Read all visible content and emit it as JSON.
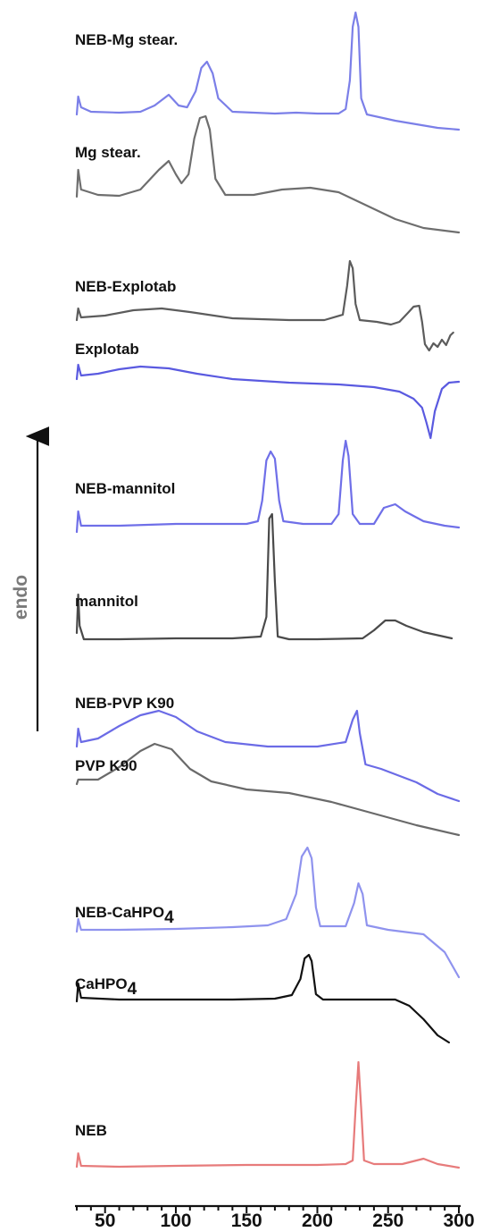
{
  "chart_data": {
    "type": "line",
    "title": "",
    "xlabel": "",
    "ylabel": "endo",
    "xlim": [
      30,
      300
    ],
    "x_ticks": [
      50,
      100,
      150,
      200,
      250,
      300
    ],
    "x_tick_labels": [
      "50",
      "100",
      "150",
      "200",
      "250",
      "300"
    ],
    "grid": false,
    "legend": "none",
    "series": [
      {
        "name": "NEB-Mg stear.",
        "color": "#7b7fe8",
        "points": [
          [
            30,
            128
          ],
          [
            31,
            108
          ],
          [
            33,
            120
          ],
          [
            40,
            125
          ],
          [
            60,
            126
          ],
          [
            75,
            125
          ],
          [
            85,
            118
          ],
          [
            95,
            106
          ],
          [
            102,
            118
          ],
          [
            108,
            120
          ],
          [
            114,
            102
          ],
          [
            118,
            76
          ],
          [
            122,
            69
          ],
          [
            126,
            82
          ],
          [
            130,
            110
          ],
          [
            140,
            125
          ],
          [
            170,
            127
          ],
          [
            185,
            126
          ],
          [
            200,
            127
          ],
          [
            215,
            127
          ],
          [
            220,
            122
          ],
          [
            223,
            90
          ],
          [
            225,
            30
          ],
          [
            227,
            14
          ],
          [
            229,
            30
          ],
          [
            231,
            110
          ],
          [
            235,
            128
          ],
          [
            255,
            135
          ],
          [
            285,
            143
          ],
          [
            300,
            145
          ]
        ]
      },
      {
        "name": "Mg stear.",
        "color": "#6e6e6e",
        "points": [
          [
            30,
            220
          ],
          [
            31,
            190
          ],
          [
            33,
            212
          ],
          [
            45,
            218
          ],
          [
            60,
            219
          ],
          [
            75,
            212
          ],
          [
            88,
            190
          ],
          [
            95,
            180
          ],
          [
            100,
            195
          ],
          [
            104,
            205
          ],
          [
            109,
            195
          ],
          [
            113,
            155
          ],
          [
            117,
            132
          ],
          [
            121,
            130
          ],
          [
            124,
            145
          ],
          [
            128,
            200
          ],
          [
            135,
            218
          ],
          [
            155,
            218
          ],
          [
            175,
            212
          ],
          [
            195,
            210
          ],
          [
            215,
            215
          ],
          [
            235,
            230
          ],
          [
            255,
            245
          ],
          [
            275,
            255
          ],
          [
            300,
            260
          ]
        ]
      },
      {
        "name": "NEB-Explotab",
        "color": "#5c5c5c",
        "points": [
          [
            30,
            358
          ],
          [
            31,
            345
          ],
          [
            33,
            355
          ],
          [
            50,
            353
          ],
          [
            70,
            347
          ],
          [
            90,
            345
          ],
          [
            110,
            349
          ],
          [
            140,
            356
          ],
          [
            180,
            358
          ],
          [
            205,
            358
          ],
          [
            218,
            352
          ],
          [
            221,
            320
          ],
          [
            223,
            292
          ],
          [
            225,
            300
          ],
          [
            227,
            340
          ],
          [
            230,
            358
          ],
          [
            242,
            360
          ],
          [
            252,
            363
          ],
          [
            258,
            360
          ],
          [
            264,
            350
          ],
          [
            268,
            343
          ],
          [
            272,
            342
          ],
          [
            274,
            360
          ],
          [
            276,
            385
          ],
          [
            279,
            392
          ],
          [
            282,
            384
          ],
          [
            285,
            388
          ],
          [
            288,
            380
          ],
          [
            291,
            386
          ],
          [
            294,
            375
          ],
          [
            296,
            372
          ]
        ]
      },
      {
        "name": "Explotab",
        "color": "#5a5ae0",
        "points": [
          [
            30,
            424
          ],
          [
            31,
            408
          ],
          [
            33,
            420
          ],
          [
            45,
            418
          ],
          [
            60,
            413
          ],
          [
            75,
            410
          ],
          [
            95,
            412
          ],
          [
            115,
            418
          ],
          [
            140,
            424
          ],
          [
            180,
            428
          ],
          [
            215,
            430
          ],
          [
            240,
            433
          ],
          [
            258,
            438
          ],
          [
            268,
            446
          ],
          [
            274,
            456
          ],
          [
            277,
            472
          ],
          [
            280,
            490
          ],
          [
            283,
            460
          ],
          [
            288,
            435
          ],
          [
            293,
            428
          ],
          [
            300,
            427
          ]
        ]
      },
      {
        "name": "NEB-mannitol",
        "color": "#6f6fe8",
        "points": [
          [
            30,
            595
          ],
          [
            31,
            572
          ],
          [
            33,
            588
          ],
          [
            60,
            588
          ],
          [
            100,
            586
          ],
          [
            150,
            586
          ],
          [
            158,
            583
          ],
          [
            161,
            560
          ],
          [
            164,
            515
          ],
          [
            167,
            505
          ],
          [
            170,
            513
          ],
          [
            173,
            560
          ],
          [
            176,
            583
          ],
          [
            190,
            586
          ],
          [
            210,
            586
          ],
          [
            215,
            575
          ],
          [
            218,
            515
          ],
          [
            220,
            493
          ],
          [
            222,
            510
          ],
          [
            225,
            575
          ],
          [
            230,
            586
          ],
          [
            240,
            586
          ],
          [
            247,
            568
          ],
          [
            255,
            564
          ],
          [
            262,
            572
          ],
          [
            275,
            583
          ],
          [
            290,
            588
          ],
          [
            300,
            590
          ]
        ]
      },
      {
        "name": "mannitol",
        "color": "#4a4a4a",
        "points": [
          [
            30,
            708
          ],
          [
            31,
            665
          ],
          [
            32,
            700
          ],
          [
            35,
            715
          ],
          [
            60,
            715
          ],
          [
            100,
            714
          ],
          [
            140,
            714
          ],
          [
            160,
            712
          ],
          [
            164,
            690
          ],
          [
            166,
            580
          ],
          [
            168,
            575
          ],
          [
            170,
            650
          ],
          [
            172,
            712
          ],
          [
            180,
            715
          ],
          [
            200,
            715
          ],
          [
            232,
            714
          ],
          [
            240,
            705
          ],
          [
            248,
            694
          ],
          [
            255,
            694
          ],
          [
            263,
            700
          ],
          [
            275,
            707
          ],
          [
            295,
            714
          ]
        ]
      },
      {
        "name": "NEB-PVP K90",
        "color": "#6b6be6",
        "points": [
          [
            30,
            835
          ],
          [
            31,
            815
          ],
          [
            33,
            830
          ],
          [
            45,
            826
          ],
          [
            60,
            812
          ],
          [
            75,
            800
          ],
          [
            88,
            795
          ],
          [
            100,
            802
          ],
          [
            115,
            818
          ],
          [
            135,
            830
          ],
          [
            165,
            835
          ],
          [
            200,
            835
          ],
          [
            220,
            830
          ],
          [
            225,
            805
          ],
          [
            228,
            795
          ],
          [
            230,
            820
          ],
          [
            234,
            855
          ],
          [
            245,
            860
          ],
          [
            270,
            875
          ],
          [
            285,
            888
          ],
          [
            300,
            896
          ]
        ]
      },
      {
        "name": "PVP K90",
        "color": "#6a6a6a",
        "points": [
          [
            30,
            877
          ],
          [
            31,
            872
          ],
          [
            45,
            872
          ],
          [
            60,
            858
          ],
          [
            75,
            840
          ],
          [
            85,
            832
          ],
          [
            97,
            838
          ],
          [
            110,
            860
          ],
          [
            125,
            874
          ],
          [
            150,
            883
          ],
          [
            180,
            887
          ],
          [
            210,
            897
          ],
          [
            240,
            910
          ],
          [
            270,
            923
          ],
          [
            300,
            934
          ]
        ]
      },
      {
        "name": "NEB-CaHPO4",
        "color": "#8f93ee",
        "points": [
          [
            30,
            1042
          ],
          [
            31,
            1028
          ],
          [
            33,
            1040
          ],
          [
            60,
            1040
          ],
          [
            100,
            1039
          ],
          [
            140,
            1037
          ],
          [
            165,
            1035
          ],
          [
            178,
            1028
          ],
          [
            185,
            1000
          ],
          [
            189,
            958
          ],
          [
            193,
            948
          ],
          [
            196,
            960
          ],
          [
            199,
            1015
          ],
          [
            202,
            1036
          ],
          [
            220,
            1036
          ],
          [
            226,
            1010
          ],
          [
            229,
            988
          ],
          [
            232,
            1000
          ],
          [
            235,
            1035
          ],
          [
            250,
            1040
          ],
          [
            275,
            1045
          ],
          [
            290,
            1065
          ],
          [
            300,
            1093
          ]
        ]
      },
      {
        "name": "CaHPO4",
        "color": "#111111",
        "points": [
          [
            30,
            1120
          ],
          [
            31,
            1100
          ],
          [
            33,
            1116
          ],
          [
            60,
            1118
          ],
          [
            100,
            1118
          ],
          [
            140,
            1118
          ],
          [
            170,
            1117
          ],
          [
            182,
            1113
          ],
          [
            188,
            1095
          ],
          [
            191,
            1072
          ],
          [
            194,
            1068
          ],
          [
            196,
            1075
          ],
          [
            199,
            1112
          ],
          [
            204,
            1118
          ],
          [
            230,
            1118
          ],
          [
            255,
            1118
          ],
          [
            265,
            1125
          ],
          [
            275,
            1140
          ],
          [
            285,
            1158
          ],
          [
            293,
            1166
          ]
        ]
      },
      {
        "name": "NEB",
        "color": "#e77b7b",
        "points": [
          [
            30,
            1305
          ],
          [
            31,
            1290
          ],
          [
            33,
            1304
          ],
          [
            60,
            1305
          ],
          [
            100,
            1304
          ],
          [
            150,
            1303
          ],
          [
            200,
            1303
          ],
          [
            220,
            1302
          ],
          [
            225,
            1298
          ],
          [
            227,
            1240
          ],
          [
            229,
            1188
          ],
          [
            231,
            1240
          ],
          [
            233,
            1298
          ],
          [
            240,
            1302
          ],
          [
            260,
            1302
          ],
          [
            275,
            1296
          ],
          [
            285,
            1302
          ],
          [
            300,
            1306
          ]
        ]
      }
    ],
    "labels": [
      {
        "text": "NEB-Mg stear.",
        "series": 0
      },
      {
        "text": "Mg stear.",
        "series": 1
      },
      {
        "text": "NEB-Explotab",
        "series": 2
      },
      {
        "text": "Explotab",
        "series": 3
      },
      {
        "text": "NEB-mannitol",
        "series": 4
      },
      {
        "text": "mannitol",
        "series": 5
      },
      {
        "text": "NEB-PVP K90",
        "series": 6
      },
      {
        "text": "PVP K90",
        "series": 7
      },
      {
        "text": "NEB-CaHPO",
        "sub": "4",
        "series": 8
      },
      {
        "text": "CaHPO",
        "sub": "4",
        "series": 9
      },
      {
        "text": "NEB",
        "series": 10
      }
    ]
  }
}
